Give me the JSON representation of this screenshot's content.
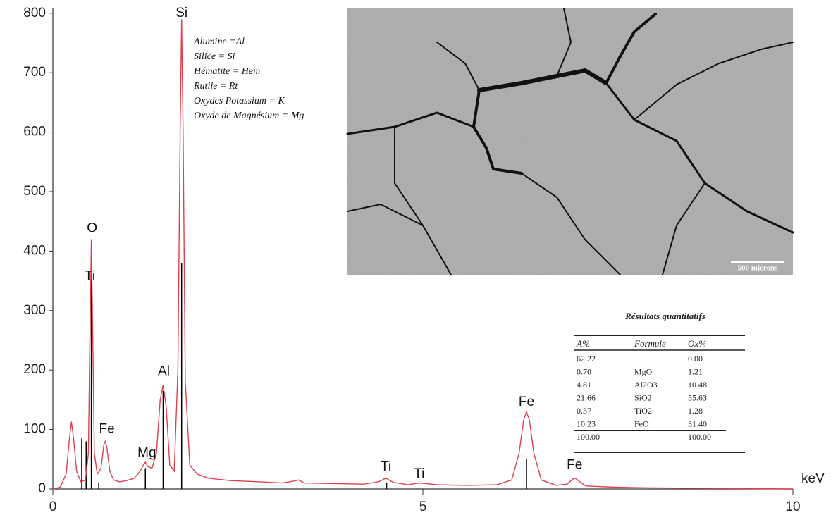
{
  "chart_data": {
    "type": "line",
    "color": "#e0404e",
    "x": [
      0,
      0.1,
      0.18,
      0.22,
      0.25,
      0.28,
      0.32,
      0.38,
      0.44,
      0.48,
      0.5,
      0.52,
      0.54,
      0.56,
      0.6,
      0.65,
      0.69,
      0.71,
      0.73,
      0.77,
      0.82,
      0.9,
      1.0,
      1.1,
      1.18,
      1.23,
      1.25,
      1.28,
      1.34,
      1.4,
      1.45,
      1.49,
      1.53,
      1.58,
      1.64,
      1.69,
      1.72,
      1.74,
      1.76,
      1.79,
      1.85,
      1.95,
      2.1,
      2.4,
      2.8,
      3.1,
      3.25,
      3.32,
      3.4,
      3.8,
      4.2,
      4.4,
      4.5,
      4.6,
      4.8,
      4.95,
      5.2,
      5.6,
      6.0,
      6.2,
      6.3,
      6.36,
      6.4,
      6.44,
      6.5,
      6.6,
      6.8,
      6.95,
      7.03,
      7.06,
      7.1,
      7.2,
      7.6,
      8.0,
      9.0,
      10.0
    ],
    "values": [
      0,
      3,
      25,
      80,
      113,
      85,
      30,
      12,
      15,
      60,
      250,
      420,
      250,
      60,
      25,
      35,
      75,
      80,
      70,
      30,
      15,
      12,
      14,
      18,
      30,
      42,
      45,
      38,
      35,
      60,
      150,
      175,
      140,
      40,
      30,
      200,
      600,
      790,
      600,
      180,
      40,
      25,
      18,
      14,
      12,
      10,
      13,
      15,
      10,
      9,
      8,
      12,
      18,
      11,
      7,
      10,
      7,
      6,
      7,
      15,
      60,
      115,
      130,
      115,
      60,
      15,
      6,
      8,
      17,
      18,
      14,
      5,
      3,
      2,
      1,
      0
    ],
    "markers": {
      "x": [
        0.39,
        0.45,
        0.52,
        0.62,
        1.25,
        1.49,
        1.74,
        4.51,
        6.4
      ],
      "values": [
        85,
        80,
        380,
        10,
        35,
        165,
        380,
        10,
        50
      ]
    },
    "peak_labels": [
      {
        "label": "O",
        "x": 0.53,
        "y": 438
      },
      {
        "label": "Ti",
        "x": 0.5,
        "y": 357
      },
      {
        "label": "Fe",
        "x": 0.73,
        "y": 100
      },
      {
        "label": "Mg",
        "x": 1.27,
        "y": 60
      },
      {
        "label": "Al",
        "x": 1.5,
        "y": 197
      },
      {
        "label": "Si",
        "x": 1.74,
        "y": 800
      },
      {
        "label": "Ti",
        "x": 4.5,
        "y": 37
      },
      {
        "label": "Ti",
        "x": 4.95,
        "y": 25
      },
      {
        "label": "Fe",
        "x": 6.4,
        "y": 146
      },
      {
        "label": "Fe",
        "x": 7.05,
        "y": 40
      }
    ],
    "xlim": [
      0,
      10
    ],
    "ylim": [
      0,
      820
    ],
    "xticks": [
      0,
      5,
      10
    ],
    "yticks": [
      0,
      100,
      200,
      300,
      400,
      500,
      600,
      700,
      800
    ],
    "x_label": "keV"
  },
  "legend": [
    "Alumine =Al",
    "Silice = Si",
    "Hématite = Hem",
    "Rutile = Rt",
    "Oxydes Potassium = K",
    "Oxyde de Magnésium = Mg"
  ],
  "micrograph": {
    "scale_label": "500 microns"
  },
  "table": {
    "title": "Résultats quantitatifs",
    "header": [
      "A%",
      "Formule",
      "Ox%"
    ],
    "rows": [
      [
        "62.22",
        "",
        "0.00"
      ],
      [
        "0.70",
        "MgO",
        "1.21"
      ],
      [
        "4.81",
        "Al2O3",
        "10.48"
      ],
      [
        "21.66",
        "SiO2",
        "55.63"
      ],
      [
        "0.37",
        "TiO2",
        "1.28"
      ],
      [
        "10.23",
        "FeO",
        "31.40"
      ],
      [
        "100.00",
        "",
        "100.00"
      ]
    ]
  }
}
